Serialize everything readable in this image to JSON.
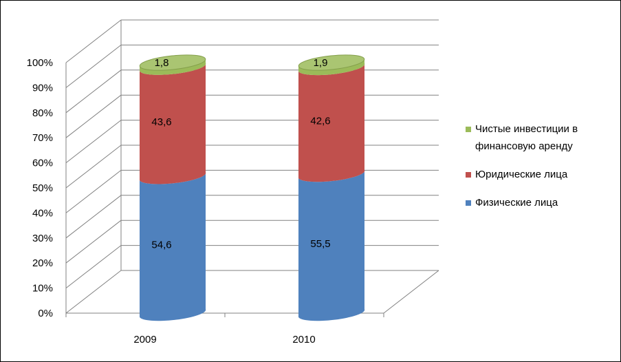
{
  "chart_data": {
    "type": "bar",
    "stacked": true,
    "style": "3d-cylinder",
    "categories": [
      "2009",
      "2010"
    ],
    "series": [
      {
        "name": "Физические лица",
        "values": [
          54.6,
          55.5
        ],
        "labels": [
          "54,6",
          "55,5"
        ],
        "color": "#4f81bd"
      },
      {
        "name": "Юридические лица",
        "values": [
          43.6,
          42.6
        ],
        "labels": [
          "43,6",
          "42,6"
        ],
        "color": "#c0504d"
      },
      {
        "name": "Чистые инвестиции в финансовую аренду",
        "values": [
          1.8,
          1.9
        ],
        "labels": [
          "1,8",
          "1,9"
        ],
        "color": "#9bbb59"
      }
    ],
    "y_ticks": [
      "0%",
      "10%",
      "20%",
      "30%",
      "40%",
      "50%",
      "60%",
      "70%",
      "80%",
      "90%",
      "100%"
    ],
    "ylim": [
      0,
      100
    ],
    "grid": true,
    "legend_position": "right"
  }
}
